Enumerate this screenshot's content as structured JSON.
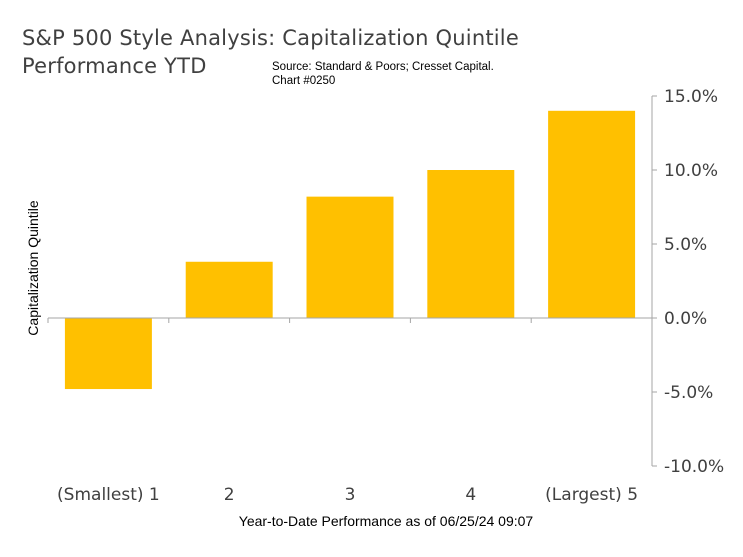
{
  "chart_data": {
    "type": "bar",
    "title_line1": "S&P 500 Style Analysis: Capitalization Quintile",
    "title_line2": "Performance YTD",
    "source_line1": "Source: Standard & Poors; Cresset Capital.",
    "source_line2": "Chart #0250",
    "categories": [
      "(Smallest) 1",
      "2",
      "3",
      "4",
      "(Largest) 5"
    ],
    "values": [
      -4.8,
      3.8,
      8.2,
      10.0,
      14.0
    ],
    "xlabel": "Year-to-Date Performance as of 06/25/24 09:07",
    "ylabel": "Capitalization Quintile",
    "ylim": [
      -10,
      15
    ],
    "yticks": [
      15,
      10,
      5,
      0,
      -5,
      -10
    ],
    "ytick_labels": [
      "15.0%",
      "10.0%",
      "5.0%",
      "0.0%",
      "-5.0%",
      "-10.0%"
    ],
    "y_axis_side": "right",
    "grid": false,
    "bar_color": "#FFC000"
  }
}
